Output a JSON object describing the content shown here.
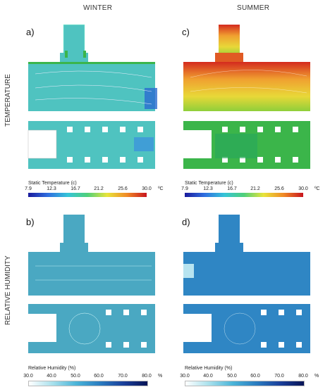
{
  "columns": {
    "left": "WINTER",
    "right": "SUMMER"
  },
  "rows": {
    "top": "TEMPERATURE",
    "bottom": "RELATIVE HUMIDITY"
  },
  "panels": {
    "a": "a)",
    "b": "b)",
    "c": "c)",
    "d": "d)"
  },
  "temperature_scale": {
    "title": "Static Temperature (c)",
    "ticks": [
      "7.9",
      "12.3",
      "16.7",
      "21.2",
      "25.6",
      "30.0"
    ],
    "unit": "ºC",
    "colors": [
      "#1a1a9c",
      "#2f6fe0",
      "#35c4d8",
      "#4fd07a",
      "#e8e43a",
      "#f08a26",
      "#c8141e"
    ]
  },
  "humidity_scale": {
    "title": "Relative Humidity (%)",
    "ticks": [
      "30.0",
      "40.0",
      "50.0",
      "60.0",
      "70.0",
      "80.0"
    ],
    "unit": "%",
    "colors": [
      "#ffffff",
      "#a8e0ec",
      "#4ab4d8",
      "#2a7cc0",
      "#1a3f9a",
      "#081456"
    ]
  },
  "fills": {
    "winter_temp": "#4fc3c0",
    "summer_temp_plan": "#3bb54a",
    "summer_temp_section": "#e06a2a",
    "winter_rh": "#4aa8c2",
    "summer_rh": "#2f86c4"
  }
}
